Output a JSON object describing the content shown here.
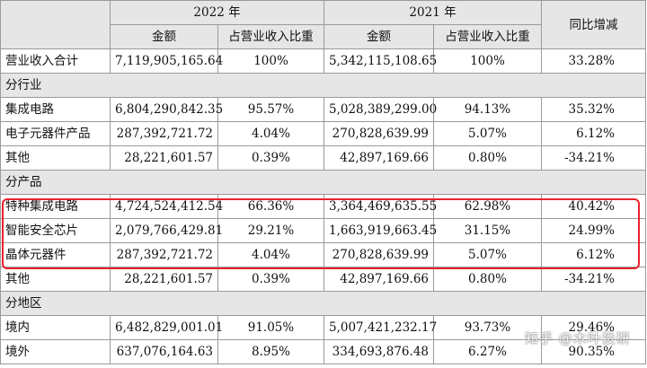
{
  "header": {
    "year_2022": "2022 年",
    "year_2021": "2021 年",
    "yoy": "同比增减",
    "amount_2022": "金额",
    "share_2022": "占营业收入比重",
    "amount_2021": "金额",
    "share_2021": "占营业收入比重"
  },
  "total": {
    "label": "营业收入合计",
    "amt22": "7,119,905,165.64",
    "pct22": "100%",
    "amt21": "5,342,115,108.65",
    "pct21": "100%",
    "yoy": "33.28%"
  },
  "sections": {
    "industry": "分行业",
    "product": "分产品",
    "region": "分地区"
  },
  "industry_rows": [
    {
      "label": "集成电路",
      "amt22": "6,804,290,842.35",
      "pct22": "95.57%",
      "amt21": "5,028,389,299.00",
      "pct21": "94.13%",
      "yoy": "35.32%"
    },
    {
      "label": "电子元器件产品",
      "amt22": "287,392,721.72",
      "pct22": "4.04%",
      "amt21": "270,828,639.99",
      "pct21": "5.07%",
      "yoy": "6.12%"
    },
    {
      "label": "其他",
      "amt22": "28,221,601.57",
      "pct22": "0.39%",
      "amt21": "42,897,169.66",
      "pct21": "0.80%",
      "yoy": "-34.21%"
    }
  ],
  "product_rows": [
    {
      "label": "特种集成电路",
      "amt22": "4,724,524,412.54",
      "pct22": "66.36%",
      "amt21": "3,364,469,635.55",
      "pct21": "62.98%",
      "yoy": "40.42%"
    },
    {
      "label": "智能安全芯片",
      "amt22": "2,079,766,429.81",
      "pct22": "29.21%",
      "amt21": "1,663,919,663.45",
      "pct21": "31.15%",
      "yoy": "24.99%"
    },
    {
      "label": "晶体元器件",
      "amt22": "287,392,721.72",
      "pct22": "4.04%",
      "amt21": "270,828,639.99",
      "pct21": "5.07%",
      "yoy": "6.12%"
    },
    {
      "label": "其他",
      "amt22": "28,221,601.57",
      "pct22": "0.39%",
      "amt21": "42,897,169.66",
      "pct21": "0.80%",
      "yoy": "-34.21%"
    }
  ],
  "region_rows": [
    {
      "label": "境内",
      "amt22": "6,482,829,001.01",
      "pct22": "91.05%",
      "amt21": "5,007,421,232.17",
      "pct21": "93.73%",
      "yoy": "29.46%"
    },
    {
      "label": "境外",
      "amt22": "637,076,164.63",
      "pct22": "8.95%",
      "amt21": "334,693,876.48",
      "pct21": "6.27%",
      "yoy": "90.35%"
    }
  ],
  "highlight_color": "#e8232b",
  "watermark": "知乎 @木叶投研"
}
